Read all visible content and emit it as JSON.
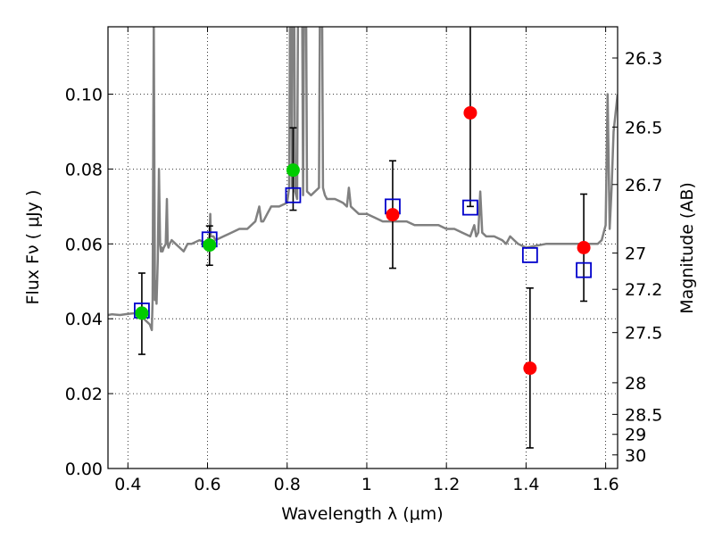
{
  "chart_data": {
    "type": "scatter",
    "xlabel": "Wavelength  λ (μm)",
    "ylabel": "Flux  Fν  ( μJy )",
    "y2label": "Magnitude (AB)",
    "xlim": [
      0.35,
      1.63
    ],
    "ylim": [
      0.0,
      0.118
    ],
    "grid": true,
    "x_ticks": [
      {
        "v": 0.4,
        "label": "0.4"
      },
      {
        "v": 0.6,
        "label": "0.6"
      },
      {
        "v": 0.8,
        "label": "0.8"
      },
      {
        "v": 1.0,
        "label": "1"
      },
      {
        "v": 1.2,
        "label": "1.2"
      },
      {
        "v": 1.4,
        "label": "1.4"
      },
      {
        "v": 1.6,
        "label": "1.6"
      }
    ],
    "y_ticks": [
      {
        "v": 0.0,
        "label": "0.00"
      },
      {
        "v": 0.02,
        "label": "0.02"
      },
      {
        "v": 0.04,
        "label": "0.04"
      },
      {
        "v": 0.06,
        "label": "0.06"
      },
      {
        "v": 0.08,
        "label": "0.08"
      },
      {
        "v": 0.1,
        "label": "0.10"
      }
    ],
    "y2_ticks": [
      {
        "mag": 26.3,
        "label": "26.3"
      },
      {
        "mag": 26.5,
        "label": "26.5"
      },
      {
        "mag": 26.7,
        "label": "26.7"
      },
      {
        "mag": 27.0,
        "label": "27"
      },
      {
        "mag": 27.2,
        "label": "27.2"
      },
      {
        "mag": 27.5,
        "label": "27.5"
      },
      {
        "mag": 28.0,
        "label": "28"
      },
      {
        "mag": 28.5,
        "label": "28.5"
      },
      {
        "mag": 29.0,
        "label": "29"
      },
      {
        "mag": 30.0,
        "label": "30"
      }
    ],
    "colors": {
      "model": "#808080",
      "green": "#00cc00",
      "red": "#ff0000",
      "square": "#0000cc",
      "errorbar": "#000000",
      "grid": "#000000"
    },
    "model_spectrum": {
      "x": [
        0.35,
        0.36,
        0.38,
        0.4,
        0.42,
        0.44,
        0.455,
        0.46,
        0.462,
        0.465,
        0.468,
        0.47,
        0.472,
        0.475,
        0.478,
        0.481,
        0.483,
        0.485,
        0.487,
        0.49,
        0.495,
        0.498,
        0.5,
        0.502,
        0.505,
        0.51,
        0.52,
        0.53,
        0.54,
        0.55,
        0.56,
        0.58,
        0.6,
        0.605,
        0.607,
        0.608,
        0.61,
        0.612,
        0.615,
        0.62,
        0.64,
        0.66,
        0.68,
        0.7,
        0.72,
        0.73,
        0.735,
        0.74,
        0.75,
        0.76,
        0.78,
        0.8,
        0.805,
        0.81,
        0.812,
        0.815,
        0.82,
        0.825,
        0.83,
        0.835,
        0.84,
        0.845,
        0.85,
        0.86,
        0.88,
        0.885,
        0.89,
        0.895,
        0.9,
        0.92,
        0.94,
        0.95,
        0.955,
        0.96,
        0.98,
        1.0,
        1.02,
        1.04,
        1.06,
        1.08,
        1.1,
        1.12,
        1.14,
        1.16,
        1.18,
        1.2,
        1.22,
        1.24,
        1.26,
        1.27,
        1.275,
        1.28,
        1.285,
        1.29,
        1.3,
        1.32,
        1.34,
        1.35,
        1.36,
        1.37,
        1.38,
        1.4,
        1.45,
        1.5,
        1.55,
        1.58,
        1.59,
        1.6,
        1.605,
        1.61,
        1.615,
        1.62,
        1.63
      ],
      "y": [
        0.041,
        0.0412,
        0.041,
        0.0413,
        0.0415,
        0.04,
        0.0385,
        0.037,
        0.045,
        0.12,
        0.045,
        0.05,
        0.044,
        0.056,
        0.08,
        0.06,
        0.058,
        0.059,
        0.058,
        0.059,
        0.06,
        0.072,
        0.06,
        0.059,
        0.06,
        0.061,
        0.06,
        0.059,
        0.058,
        0.06,
        0.06,
        0.061,
        0.06,
        0.062,
        0.068,
        0.062,
        0.062,
        0.062,
        0.062,
        0.061,
        0.062,
        0.063,
        0.064,
        0.064,
        0.066,
        0.07,
        0.066,
        0.066,
        0.068,
        0.07,
        0.07,
        0.071,
        0.075,
        0.18,
        0.075,
        0.18,
        0.074,
        0.072,
        0.18,
        0.18,
        0.073,
        0.18,
        0.074,
        0.073,
        0.075,
        0.18,
        0.075,
        0.073,
        0.072,
        0.072,
        0.071,
        0.07,
        0.075,
        0.07,
        0.068,
        0.068,
        0.067,
        0.066,
        0.066,
        0.066,
        0.066,
        0.065,
        0.065,
        0.065,
        0.065,
        0.064,
        0.064,
        0.063,
        0.062,
        0.065,
        0.062,
        0.063,
        0.074,
        0.063,
        0.062,
        0.062,
        0.061,
        0.06,
        0.062,
        0.061,
        0.06,
        0.059,
        0.06,
        0.06,
        0.06,
        0.06,
        0.061,
        0.065,
        0.1,
        0.064,
        0.075,
        0.09,
        0.1
      ]
    },
    "green_points": [
      {
        "x": 0.435,
        "y": 0.0415
      },
      {
        "x": 0.605,
        "y": 0.0597
      },
      {
        "x": 0.815,
        "y": 0.0797
      }
    ],
    "green_errors": [
      {
        "x": 0.435,
        "y": 0.0415,
        "lo": 0.0305,
        "hi": 0.0522
      },
      {
        "x": 0.605,
        "y": 0.0597,
        "lo": 0.0543,
        "hi": 0.0648
      },
      {
        "x": 0.815,
        "y": 0.0797,
        "lo": 0.069,
        "hi": 0.091
      }
    ],
    "red_points": [
      {
        "x": 1.065,
        "y": 0.0678
      },
      {
        "x": 1.26,
        "y": 0.095
      },
      {
        "x": 1.41,
        "y": 0.0268
      },
      {
        "x": 1.545,
        "y": 0.059
      }
    ],
    "red_errors": [
      {
        "x": 1.065,
        "y": 0.0678,
        "lo": 0.0535,
        "hi": 0.0822
      },
      {
        "x": 1.26,
        "y": 0.095,
        "lo": 0.07,
        "hi": 0.12
      },
      {
        "x": 1.41,
        "y": 0.0268,
        "lo": 0.0055,
        "hi": 0.0482
      },
      {
        "x": 1.545,
        "y": 0.059,
        "lo": 0.0447,
        "hi": 0.0733
      }
    ],
    "model_squares": [
      {
        "x": 0.435,
        "y": 0.0422
      },
      {
        "x": 0.605,
        "y": 0.0612
      },
      {
        "x": 0.815,
        "y": 0.073
      },
      {
        "x": 1.065,
        "y": 0.07
      },
      {
        "x": 1.26,
        "y": 0.0697
      },
      {
        "x": 1.41,
        "y": 0.057
      },
      {
        "x": 1.545,
        "y": 0.053
      }
    ]
  }
}
